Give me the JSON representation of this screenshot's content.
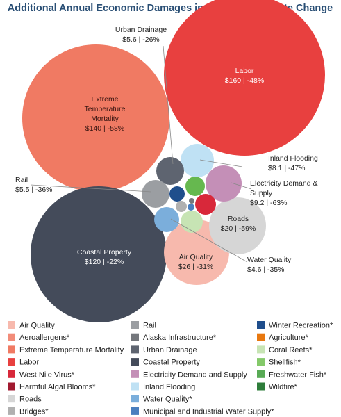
{
  "chart_data": {
    "type": "bubble",
    "title": "Additional Annual Economic Damages in 2090 from Climate Change",
    "units": "$ billions",
    "bubbles": [
      {
        "key": "labor",
        "name": "Labor",
        "value": 160,
        "change": "-48%",
        "label": "$160 | -48%",
        "color": "#e8403f"
      },
      {
        "key": "extreme_temp",
        "name": "Extreme Temperature Mortality",
        "value": 140,
        "change": "-58%",
        "label": "$140 | -58%",
        "display_name": [
          "Extreme",
          "Temperature",
          "Mortality"
        ],
        "color": "#f07a63"
      },
      {
        "key": "coastal",
        "name": "Coastal Property",
        "value": 120,
        "change": "-22%",
        "label": "$120 | -22%",
        "color": "#444b5a"
      },
      {
        "key": "air_quality",
        "name": "Air Quality",
        "value": 26,
        "change": "-31%",
        "label": "$26 | -31%",
        "color": "#f7b9ad"
      },
      {
        "key": "roads",
        "name": "Roads",
        "value": 20,
        "change": "-59%",
        "label": "$20 | -59%",
        "color": "#d6d6d6"
      },
      {
        "key": "electricity",
        "name": "Electricity Demand & Supply",
        "value": 9.2,
        "change": "-63%",
        "label": "$9.2 | -63%",
        "display_name": [
          "Electricity Demand &",
          "Supply"
        ],
        "color": "#c48fb7"
      },
      {
        "key": "inland_flooding",
        "name": "Inland Flooding",
        "value": 8.1,
        "change": "-47%",
        "label": "$8.1 | -47%",
        "color": "#bfe1f4"
      },
      {
        "key": "urban_drainage",
        "name": "Urban Drainage",
        "value": 5.6,
        "change": "-26%",
        "label": "$5.6 | -26%",
        "color": "#5e6470"
      },
      {
        "key": "rail",
        "name": "Rail",
        "value": 5.5,
        "change": "-36%",
        "label": "$5.5 | -36%",
        "color": "#9b9ea2"
      },
      {
        "key": "water_quality",
        "name": "Water Quality",
        "value": 4.6,
        "change": "-35%",
        "label": "$4.6 | -35%",
        "color": "#7baedb"
      },
      {
        "key": "winter_recreation",
        "color": "#1f4e8c"
      },
      {
        "key": "shellfish",
        "color": "#66b84f"
      },
      {
        "key": "west_nile",
        "color": "#d8283a"
      },
      {
        "key": "coral_reefs",
        "color": "#c7e4b4"
      },
      {
        "key": "bridges",
        "color": "#b0b0b0"
      },
      {
        "key": "alaska_infra",
        "color": "#74777c"
      },
      {
        "key": "municipal_water",
        "color": "#4a7fbf"
      }
    ],
    "legend": {
      "columns": [
        [
          {
            "name": "Air Quality",
            "color": "#f7b9ad"
          },
          {
            "name": "Aeroallergens*",
            "color": "#f28c79"
          },
          {
            "name": "Extreme Temperature Mortality",
            "color": "#f07a63"
          },
          {
            "name": "Labor",
            "color": "#e8403f"
          },
          {
            "name": "West Nile Virus*",
            "color": "#d8283a"
          },
          {
            "name": "Harmful Algal Blooms*",
            "color": "#a11a30"
          },
          {
            "name": "Roads",
            "color": "#d6d6d6"
          },
          {
            "name": "Bridges*",
            "color": "#b0b0b0"
          }
        ],
        [
          {
            "name": "Rail",
            "color": "#9b9ea2"
          },
          {
            "name": "Alaska Infrastructure*",
            "color": "#74777c"
          },
          {
            "name": "Urban Drainage",
            "color": "#5e6470"
          },
          {
            "name": "Coastal Property",
            "color": "#444b5a"
          },
          {
            "name": "Electricity Demand and Supply",
            "color": "#c48fb7"
          },
          {
            "name": "Inland Flooding",
            "color": "#bfe1f4"
          },
          {
            "name": "Water Quality*",
            "color": "#7baedb"
          },
          {
            "name": "Municipal and Industrial Water Supply*",
            "color": "#4a7fbf"
          }
        ],
        [
          {
            "name": "Winter Recreation*",
            "color": "#1f4e8c"
          },
          {
            "name": "Agriculture*",
            "color": "#e8780f"
          },
          {
            "name": "Coral Reefs*",
            "color": "#c7e4b4"
          },
          {
            "name": "Shellfish*",
            "color": "#84c96a"
          },
          {
            "name": "Freshwater Fish*",
            "color": "#58aa55"
          },
          {
            "name": "Wildfire*",
            "color": "#2e7d3a"
          }
        ]
      ]
    }
  }
}
